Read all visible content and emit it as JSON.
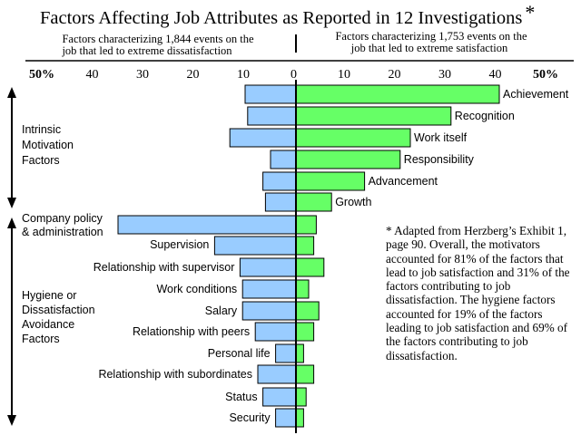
{
  "chart_data": {
    "type": "bar",
    "title": "Factors Affecting Job Attributes as Reported in 12 Investigations",
    "title_mark": "*",
    "left_caption": [
      "Factors characterizing 1,844 events on the",
      "job that led to extreme dissatisfaction"
    ],
    "right_caption": [
      "Factors characterizing 1,753 events on the",
      "job that led to extreme satisfaction"
    ],
    "axis_ticks": [
      "50%",
      "40",
      "30",
      "20",
      "10",
      "0",
      "10",
      "20",
      "30",
      "40",
      "50%"
    ],
    "xlim": [
      -50,
      50
    ],
    "group_labels": {
      "intrinsic": [
        "Intrinsic",
        "Motivation",
        "Factors"
      ],
      "hygiene": [
        "Hygiene or",
        "Dissatisfaction",
        "Avoidance",
        "Factors"
      ]
    },
    "categories": [
      "Achievement",
      "Recognition",
      "Work itself",
      "Responsibility",
      "Advancement",
      "Growth",
      "Company policy & administration",
      "Supervision",
      "Relationship with supervisor",
      "Work conditions",
      "Salary",
      "Relationship with peers",
      "Personal life",
      "Relationship with subordinates",
      "Status",
      "Security"
    ],
    "company_policy_label": [
      "Company policy",
      "& administration"
    ],
    "series": [
      {
        "key": "dissatisfaction",
        "color": "#99ccff",
        "values": [
          10,
          9.5,
          13,
          5,
          6.5,
          6,
          35,
          16,
          11,
          10.5,
          10.5,
          8,
          4,
          7.5,
          6.5,
          4
        ]
      },
      {
        "key": "satisfaction",
        "color": "#66ff66",
        "values": [
          40,
          30.5,
          22.5,
          20.5,
          13.5,
          7,
          4,
          3.5,
          5.5,
          2.5,
          4.5,
          3.5,
          1.5,
          3.5,
          2,
          1.5
        ]
      }
    ],
    "note": "* Adapted from Herzberg’s Exhibit 1, page 90. Overall, the motivators accounted for 81% of the factors that lead to job satisfaction and 31% of the factors contributing to job dissatisfaction. The hygiene factors accounted for 19% of the factors leading to job satisfaction and 69% of the factors contributing to job dissatisfaction."
  }
}
